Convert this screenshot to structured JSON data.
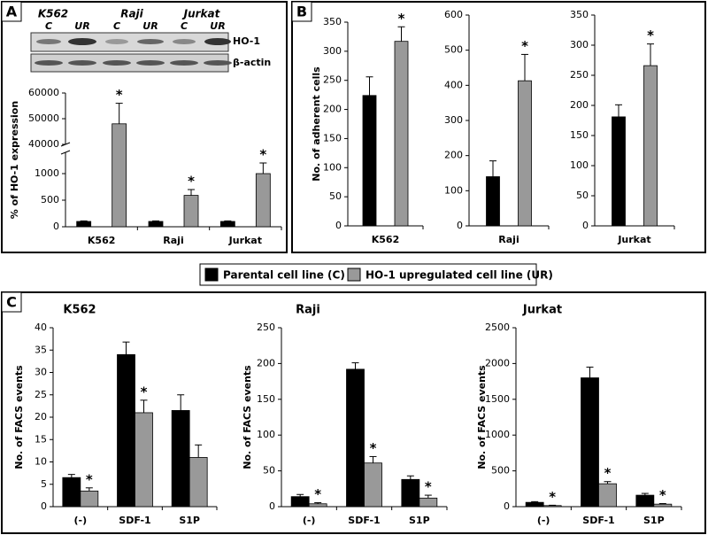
{
  "panel_labels": [
    "A",
    "B",
    "C"
  ],
  "blot": {
    "cell_lines": [
      "K562",
      "Raji",
      "Jurkat"
    ],
    "lanes": [
      "C",
      "UR",
      "C",
      "UR",
      "C",
      "UR"
    ],
    "proteins": [
      "HO-1",
      "β-actin"
    ]
  },
  "legend": [
    {
      "name": "Parental cell line (C)",
      "color": "#000000"
    },
    {
      "name": "HO-1 upregulated cell line (UR)",
      "color": "#999999"
    }
  ],
  "chart_data": [
    {
      "type": "bar",
      "y_label": "% of HO-1 expression",
      "categories": [
        "K562",
        "Raji",
        "Jurkat"
      ],
      "ylim": [
        0,
        60000
      ],
      "y_break": [
        1400,
        40000
      ],
      "yticks": [
        0,
        500,
        1000,
        40000,
        50000,
        60000
      ],
      "series": [
        {
          "color": "#000000",
          "values": [
            100,
            100,
            100
          ],
          "errors": [
            10,
            10,
            10
          ],
          "annotations": [
            null,
            null,
            null
          ]
        },
        {
          "color": "#999999",
          "values": [
            48000,
            590,
            1000
          ],
          "errors": [
            8000,
            110,
            200
          ],
          "annotations": [
            "*",
            "*",
            "*"
          ]
        }
      ]
    },
    {
      "type": "bar",
      "y_label": "No. of adherent cells",
      "categories": [
        "K562"
      ],
      "ylim": [
        0,
        350
      ],
      "yticks": [
        0,
        50,
        100,
        150,
        200,
        250,
        300,
        350
      ],
      "series": [
        {
          "color": "#000000",
          "values": [
            224
          ],
          "errors": [
            32
          ],
          "annotations": [
            null
          ]
        },
        {
          "color": "#999999",
          "values": [
            317
          ],
          "errors": [
            25
          ],
          "annotations": [
            "*"
          ]
        }
      ]
    },
    {
      "type": "bar",
      "categories": [
        "Raji"
      ],
      "ylim": [
        0,
        600
      ],
      "yticks": [
        0,
        100,
        200,
        300,
        400,
        500,
        600
      ],
      "series": [
        {
          "color": "#000000",
          "values": [
            140
          ],
          "errors": [
            45
          ],
          "annotations": [
            null
          ]
        },
        {
          "color": "#999999",
          "values": [
            413
          ],
          "errors": [
            75
          ],
          "annotations": [
            "*"
          ]
        }
      ]
    },
    {
      "type": "bar",
      "categories": [
        "Jurkat"
      ],
      "ylim": [
        0,
        350
      ],
      "yticks": [
        0,
        50,
        100,
        150,
        200,
        250,
        300,
        350
      ],
      "series": [
        {
          "color": "#000000",
          "values": [
            181
          ],
          "errors": [
            20
          ],
          "annotations": [
            null
          ]
        },
        {
          "color": "#999999",
          "values": [
            266
          ],
          "errors": [
            36
          ],
          "annotations": [
            "*"
          ]
        }
      ]
    },
    {
      "type": "bar",
      "title": "K562",
      "y_label": "No. of FACS events",
      "categories": [
        "(-)",
        "SDF-1",
        "S1P"
      ],
      "ylim": [
        0,
        40
      ],
      "yticks": [
        0,
        5,
        10,
        15,
        20,
        25,
        30,
        35,
        40
      ],
      "series": [
        {
          "color": "#000000",
          "values": [
            6.5,
            34,
            21.5
          ],
          "errors": [
            0.7,
            2.8,
            3.5
          ],
          "annotations": [
            null,
            null,
            null
          ]
        },
        {
          "color": "#999999",
          "values": [
            3.5,
            21,
            11
          ],
          "errors": [
            0.7,
            2.8,
            2.8
          ],
          "annotations": [
            "*",
            "*",
            null
          ]
        }
      ]
    },
    {
      "type": "bar",
      "title": "Raji",
      "y_label": "No. of FACS events",
      "categories": [
        "(-)",
        "SDF-1",
        "S1P"
      ],
      "ylim": [
        0,
        250
      ],
      "yticks": [
        0,
        50,
        100,
        150,
        200,
        250
      ],
      "series": [
        {
          "color": "#000000",
          "values": [
            14,
            192,
            38
          ],
          "errors": [
            3,
            9,
            5
          ],
          "annotations": [
            null,
            null,
            null
          ]
        },
        {
          "color": "#999999",
          "values": [
            4,
            61,
            12
          ],
          "errors": [
            1.5,
            9,
            4
          ],
          "annotations": [
            "*",
            "*",
            "*"
          ]
        }
      ]
    },
    {
      "type": "bar",
      "title": "Jurkat",
      "y_label": "No. of FACS events",
      "categories": [
        "(-)",
        "SDF-1",
        "S1P"
      ],
      "ylim": [
        0,
        2500
      ],
      "yticks": [
        0,
        500,
        1000,
        1500,
        2000,
        2500
      ],
      "series": [
        {
          "color": "#000000",
          "values": [
            60,
            1800,
            160
          ],
          "errors": [
            10,
            150,
            25
          ],
          "annotations": [
            null,
            null,
            null
          ]
        },
        {
          "color": "#999999",
          "values": [
            15,
            320,
            35
          ],
          "errors": [
            5,
            30,
            8
          ],
          "annotations": [
            "*",
            "*",
            "*"
          ]
        }
      ]
    }
  ]
}
